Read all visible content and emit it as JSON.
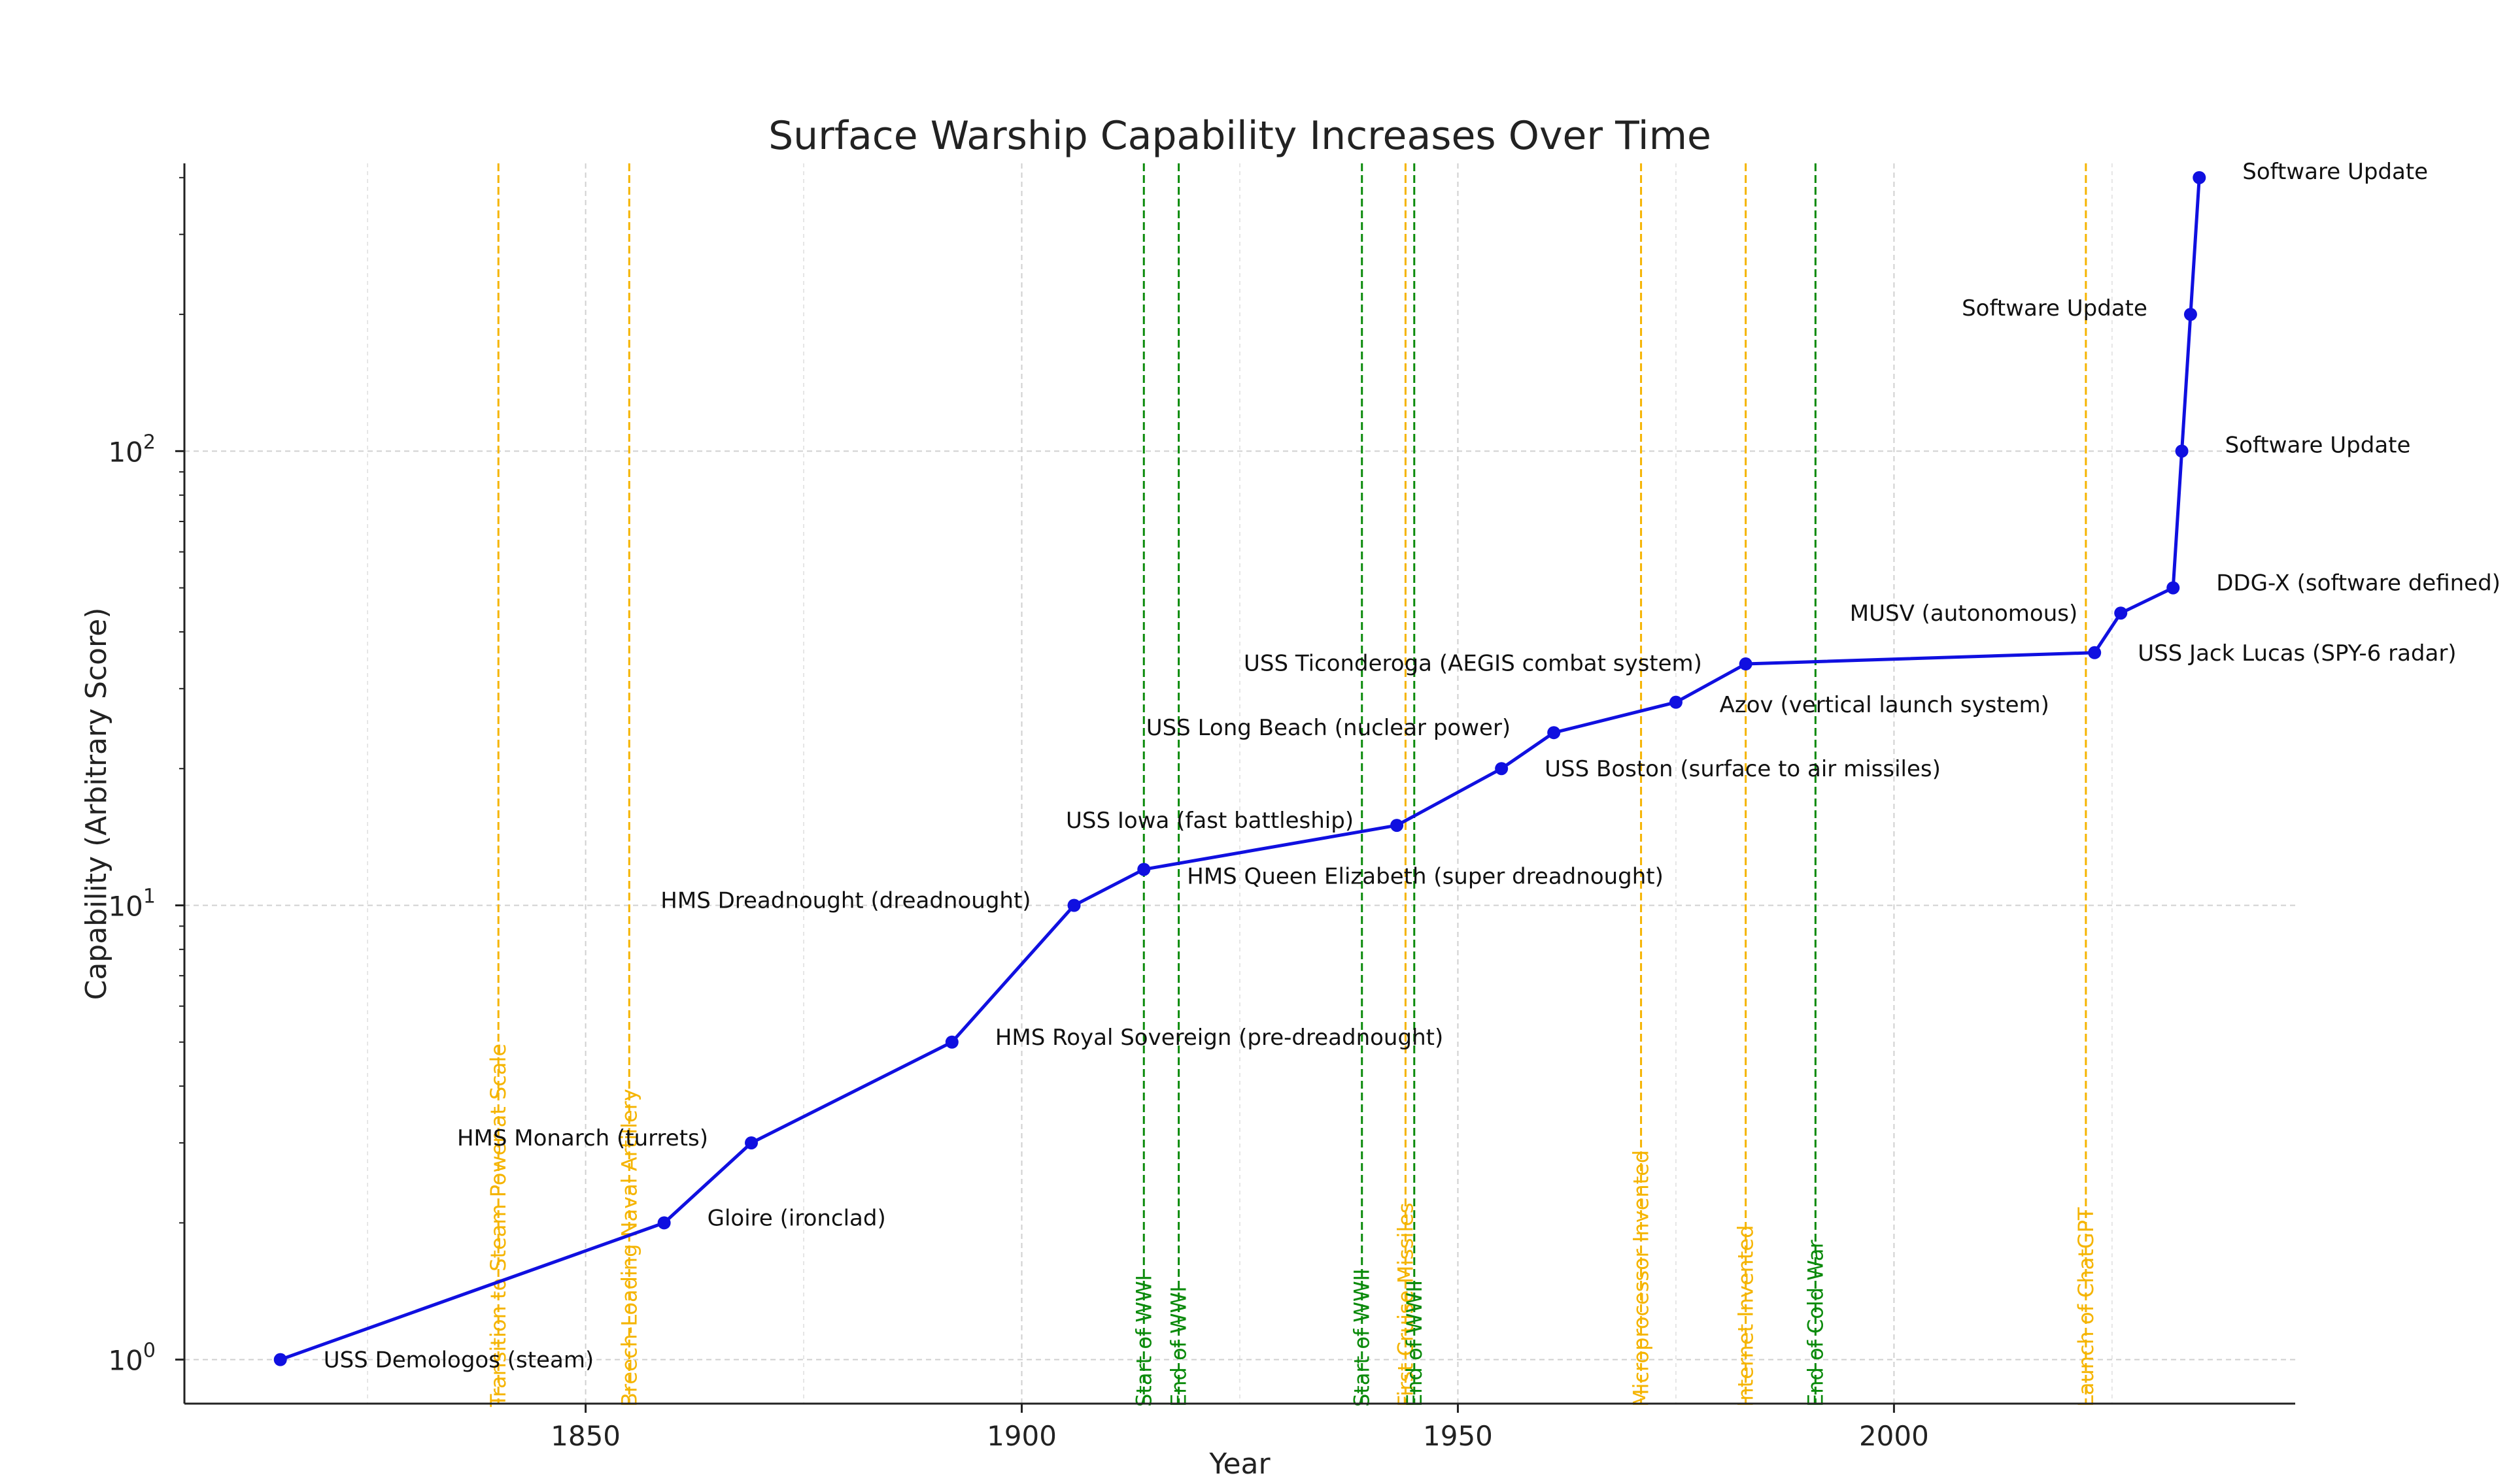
{
  "chart_data": {
    "type": "line",
    "title": "Surface Warship Capability Increases Over Time",
    "xlabel": "Year",
    "ylabel": "Capability (Arbitrary Score)",
    "xlim": [
      1804,
      2046
    ],
    "ylim": [
      0.8,
      430
    ],
    "yscale": "log",
    "xticks": [
      1850,
      1900,
      1950,
      2000
    ],
    "yticks": [
      {
        "value": 1,
        "base": "10",
        "exp": "0"
      },
      {
        "value": 10,
        "base": "10",
        "exp": "1"
      },
      {
        "value": 100,
        "base": "10",
        "exp": "2"
      }
    ],
    "grid": true,
    "line_color": "#1010e0",
    "series": [
      {
        "points": [
          {
            "x": 1815,
            "y": 1,
            "label": "USS Demologos (steam)",
            "label_color": "#111111"
          },
          {
            "x": 1859,
            "y": 2,
            "label": "Gloire (ironclad)",
            "label_color": "#111111"
          },
          {
            "x": 1869,
            "y": 3,
            "label": "HMS Monarch (turrets)",
            "label_color": "#111111"
          },
          {
            "x": 1892,
            "y": 5,
            "label": "HMS Royal Sovereign (pre-dreadnought)",
            "label_color": "#111111"
          },
          {
            "x": 1906,
            "y": 10,
            "label": "HMS Dreadnought (dreadnought)",
            "label_color": "#111111"
          },
          {
            "x": 1914,
            "y": 12,
            "label": "HMS Queen Elizabeth (super dreadnought)",
            "label_color": "#111111"
          },
          {
            "x": 1943,
            "y": 15,
            "label": "USS Iowa (fast battleship)",
            "label_color": "#111111"
          },
          {
            "x": 1955,
            "y": 20,
            "label": "USS Boston (surface to air missiles)",
            "label_color": "#111111"
          },
          {
            "x": 1961,
            "y": 24,
            "label": "USS Long Beach (nuclear power)",
            "label_color": "#111111"
          },
          {
            "x": 1975,
            "y": 28,
            "label": "USS Ticonderoga (AEGIS combat system)",
            "label_color": "#111111"
          },
          {
            "x": 1983,
            "y": 34,
            "label": "Azov (vertical launch system)",
            "label_color": "#111111"
          },
          {
            "x": 2023,
            "y": 36,
            "label": "USS Jack Lucas (SPY-6 radar)",
            "label_color": "#111111"
          },
          {
            "x": 2026,
            "y": 44,
            "label": "MUSV (autonomous)",
            "label_color": "#111111"
          },
          {
            "x": 2032,
            "y": 50,
            "label": "DDG-X (software defined)",
            "label_color": "#111111"
          },
          {
            "x": 2033,
            "y": 100,
            "label": "Software Update",
            "label_color": "#e8231a"
          },
          {
            "x": 2034,
            "y": 200,
            "label": "Software Update",
            "label_color": "#e8231a"
          },
          {
            "x": 2035,
            "y": 400,
            "label": "Software Update",
            "label_color": "#e8231a"
          }
        ]
      }
    ],
    "events": [
      {
        "x": 1840,
        "label": "Transition to Steam Power at Scale",
        "color": "#f5b400"
      },
      {
        "x": 1855,
        "label": "Breech-Loading Naval Artillery",
        "color": "#f5b400"
      },
      {
        "x": 1914,
        "label": "Start of WWI",
        "color": "#0a8a0a"
      },
      {
        "x": 1918,
        "label": "End of WWI",
        "color": "#0a8a0a"
      },
      {
        "x": 1939,
        "label": "Start of WWII",
        "color": "#0a8a0a"
      },
      {
        "x": 1944,
        "label": "First Cruise Missiles",
        "color": "#f5b400"
      },
      {
        "x": 1945,
        "label": "End of WWII",
        "color": "#0a8a0a"
      },
      {
        "x": 1971,
        "label": "Microprocessor Invented",
        "color": "#f5b400"
      },
      {
        "x": 1983,
        "label": "Internet Invented",
        "color": "#f5b400"
      },
      {
        "x": 1991,
        "label": "End of Cold War",
        "color": "#0a8a0a"
      },
      {
        "x": 2022,
        "label": "Launch of ChatGPT",
        "color": "#f5b400"
      }
    ]
  }
}
